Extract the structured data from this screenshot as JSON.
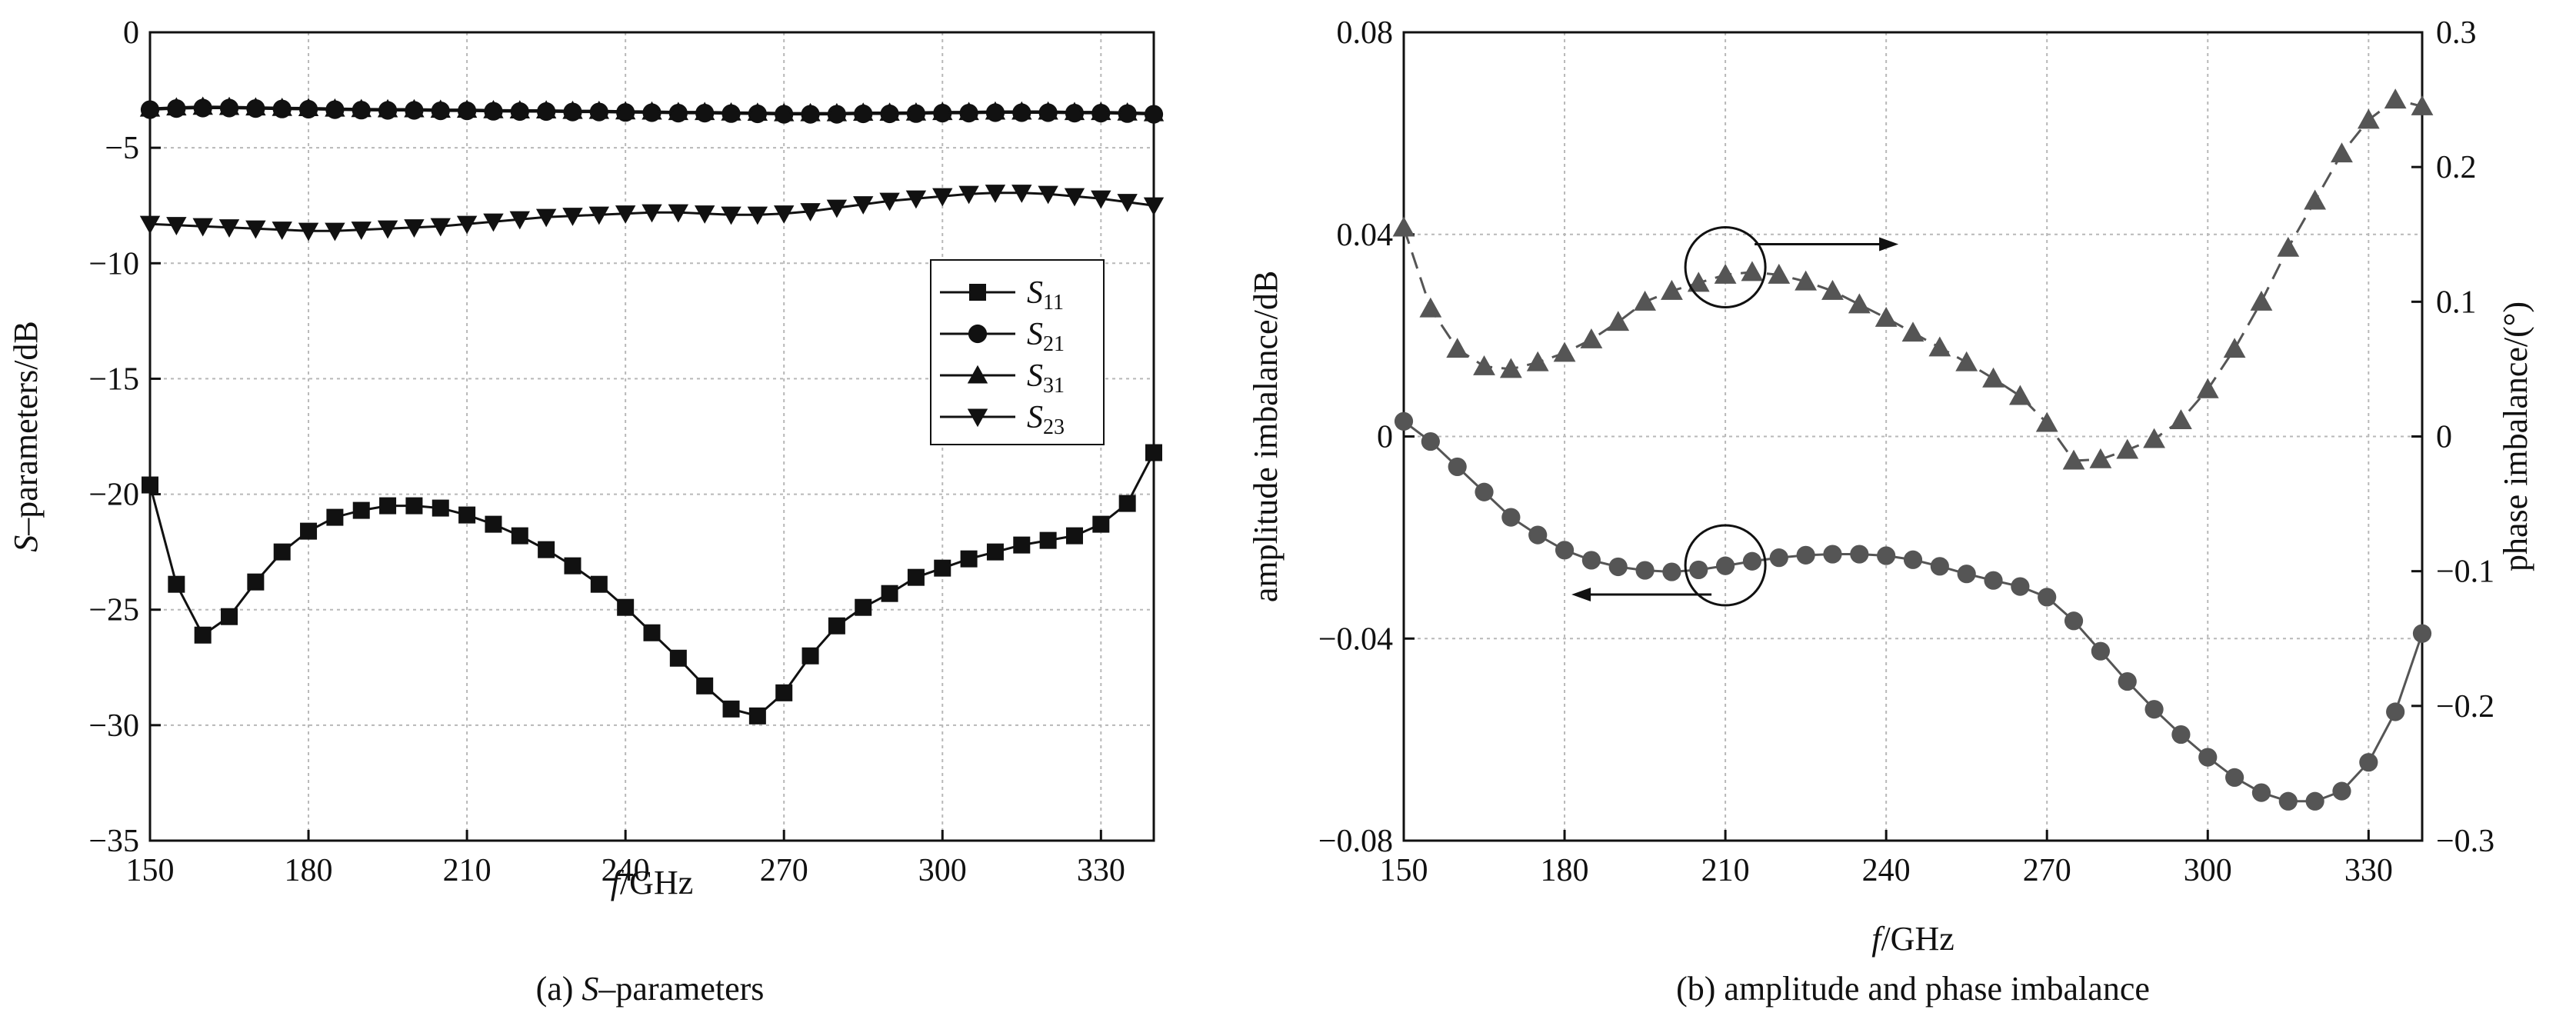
{
  "chart_data": [
    {
      "type": "line",
      "caption_prefix": "(a) ",
      "caption_italic": "S",
      "caption_rest": "–parameters",
      "xlabel_italic": "f",
      "xlabel_rest": "/GHz",
      "ylabel_italic": "S",
      "ylabel_rest": "–parameters/dB",
      "xlim": [
        150,
        340
      ],
      "ylim": [
        -35,
        0
      ],
      "xticks": [
        150,
        180,
        210,
        240,
        270,
        300,
        330
      ],
      "xtick_labels": [
        "150",
        "180",
        "210",
        "240",
        "270",
        "300",
        "330"
      ],
      "yticks": [
        0,
        -5,
        -10,
        -15,
        -20,
        -25,
        -30,
        -35
      ],
      "ytick_labels": [
        "0",
        "−5",
        "−10",
        "−15",
        "−20",
        "−25",
        "−30",
        "−35"
      ],
      "grid": true,
      "legend_position": "right-middle",
      "series": [
        {
          "name_main": "S",
          "name_sub": "11",
          "marker": "square",
          "color": "#111111",
          "x": [
            150,
            155,
            160,
            165,
            170,
            175,
            180,
            185,
            190,
            195,
            200,
            205,
            210,
            215,
            220,
            225,
            230,
            235,
            240,
            245,
            250,
            255,
            260,
            265,
            270,
            275,
            280,
            285,
            290,
            295,
            300,
            305,
            310,
            315,
            320,
            325,
            330,
            335,
            340
          ],
          "y": [
            -19.6,
            -23.9,
            -26.1,
            -25.3,
            -23.8,
            -22.5,
            -21.6,
            -21.0,
            -20.7,
            -20.5,
            -20.5,
            -20.6,
            -20.9,
            -21.3,
            -21.8,
            -22.4,
            -23.1,
            -23.9,
            -24.9,
            -26.0,
            -27.1,
            -28.3,
            -29.3,
            -29.6,
            -28.6,
            -27.0,
            -25.7,
            -24.9,
            -24.3,
            -23.6,
            -23.2,
            -22.8,
            -22.5,
            -22.2,
            -22.0,
            -21.8,
            -21.3,
            -20.4,
            -18.2
          ]
        },
        {
          "name_main": "S",
          "name_sub": "21",
          "marker": "circle",
          "color": "#111111",
          "x": [
            150,
            155,
            160,
            165,
            170,
            175,
            180,
            185,
            190,
            195,
            200,
            205,
            210,
            215,
            220,
            225,
            230,
            235,
            240,
            245,
            250,
            255,
            260,
            265,
            270,
            275,
            280,
            285,
            290,
            295,
            300,
            305,
            310,
            315,
            320,
            325,
            330,
            335,
            340
          ],
          "y": [
            -3.35,
            -3.3,
            -3.28,
            -3.28,
            -3.3,
            -3.32,
            -3.33,
            -3.35,
            -3.37,
            -3.38,
            -3.38,
            -3.4,
            -3.4,
            -3.42,
            -3.43,
            -3.43,
            -3.45,
            -3.45,
            -3.47,
            -3.48,
            -3.5,
            -3.5,
            -3.52,
            -3.53,
            -3.55,
            -3.55,
            -3.55,
            -3.53,
            -3.53,
            -3.52,
            -3.5,
            -3.5,
            -3.48,
            -3.48,
            -3.48,
            -3.5,
            -3.5,
            -3.52,
            -3.55
          ]
        },
        {
          "name_main": "S",
          "name_sub": "31",
          "marker": "triangle-up",
          "color": "#111111",
          "x": [
            150,
            155,
            160,
            165,
            170,
            175,
            180,
            185,
            190,
            195,
            200,
            205,
            210,
            215,
            220,
            225,
            230,
            235,
            240,
            245,
            250,
            255,
            260,
            265,
            270,
            275,
            280,
            285,
            290,
            295,
            300,
            305,
            310,
            315,
            320,
            325,
            330,
            335,
            340
          ],
          "y": [
            -3.3,
            -3.25,
            -3.22,
            -3.23,
            -3.25,
            -3.27,
            -3.28,
            -3.3,
            -3.32,
            -3.33,
            -3.33,
            -3.35,
            -3.35,
            -3.37,
            -3.38,
            -3.38,
            -3.4,
            -3.4,
            -3.42,
            -3.43,
            -3.45,
            -3.45,
            -3.47,
            -3.48,
            -3.5,
            -3.5,
            -3.5,
            -3.48,
            -3.48,
            -3.47,
            -3.45,
            -3.45,
            -3.43,
            -3.43,
            -3.43,
            -3.45,
            -3.45,
            -3.47,
            -3.5
          ]
        },
        {
          "name_main": "S",
          "name_sub": "23",
          "marker": "triangle-down",
          "color": "#111111",
          "x": [
            150,
            155,
            160,
            165,
            170,
            175,
            180,
            185,
            190,
            195,
            200,
            205,
            210,
            215,
            220,
            225,
            230,
            235,
            240,
            245,
            250,
            255,
            260,
            265,
            270,
            275,
            280,
            285,
            290,
            295,
            300,
            305,
            310,
            315,
            320,
            325,
            330,
            335,
            340
          ],
          "y": [
            -8.3,
            -8.35,
            -8.4,
            -8.45,
            -8.5,
            -8.55,
            -8.6,
            -8.6,
            -8.55,
            -8.5,
            -8.45,
            -8.4,
            -8.3,
            -8.2,
            -8.1,
            -8.0,
            -7.95,
            -7.9,
            -7.85,
            -7.8,
            -7.8,
            -7.85,
            -7.9,
            -7.9,
            -7.85,
            -7.75,
            -7.6,
            -7.45,
            -7.3,
            -7.2,
            -7.1,
            -7.0,
            -6.95,
            -6.95,
            -7.0,
            -7.1,
            -7.2,
            -7.35,
            -7.5
          ]
        }
      ]
    },
    {
      "type": "line",
      "caption": "(b) amplitude and phase imbalance",
      "xlabel_italic": "f",
      "xlabel_rest": "/GHz",
      "ylabel_left": "amplitude imbalance/dB",
      "ylabel_right": "phase imbalance/(°)",
      "xlim": [
        150,
        340
      ],
      "ylim_left": [
        -0.08,
        0.08
      ],
      "ylim_right": [
        -0.3,
        0.3
      ],
      "xticks": [
        150,
        180,
        210,
        240,
        270,
        300,
        330
      ],
      "xtick_labels": [
        "150",
        "180",
        "210",
        "240",
        "270",
        "300",
        "330"
      ],
      "yticks_left": [
        0.08,
        0.04,
        0,
        -0.04,
        -0.08
      ],
      "ytick_labels_left": [
        "0.08",
        "0.04",
        "0",
        "−0.04",
        "−0.08"
      ],
      "yticks_right": [
        0.3,
        0.2,
        0.1,
        0,
        -0.1,
        -0.2,
        -0.3
      ],
      "ytick_labels_right": [
        "0.3",
        "0.2",
        "0.1",
        "0",
        "−0.1",
        "−0.2",
        "−0.3"
      ],
      "grid": true,
      "annotations": [
        {
          "type": "circle-arrow",
          "x": 210,
          "y_left": 0.0335,
          "direction": "right",
          "axis": "right"
        },
        {
          "type": "circle-arrow",
          "x": 210,
          "y_left": -0.0255,
          "direction": "left",
          "axis": "left"
        }
      ],
      "series": [
        {
          "axis": "right",
          "marker": "triangle-up",
          "line": "dashed",
          "color": "#555555",
          "x": [
            150,
            155,
            160,
            165,
            170,
            175,
            180,
            185,
            190,
            195,
            200,
            205,
            210,
            215,
            220,
            225,
            230,
            235,
            240,
            245,
            250,
            255,
            260,
            265,
            270,
            275,
            280,
            285,
            290,
            295,
            300,
            305,
            310,
            315,
            320,
            325,
            330,
            335,
            340
          ],
          "y": [
            0.155,
            0.095,
            0.065,
            0.052,
            0.05,
            0.055,
            0.062,
            0.072,
            0.085,
            0.1,
            0.108,
            0.114,
            0.12,
            0.122,
            0.12,
            0.115,
            0.108,
            0.098,
            0.088,
            0.077,
            0.066,
            0.055,
            0.043,
            0.03,
            0.01,
            -0.018,
            -0.017,
            -0.01,
            -0.002,
            0.012,
            0.035,
            0.065,
            0.1,
            0.14,
            0.175,
            0.21,
            0.235,
            0.25,
            0.245
          ]
        },
        {
          "axis": "left",
          "marker": "circle",
          "line": "solid",
          "color": "#555555",
          "x": [
            150,
            155,
            160,
            165,
            170,
            175,
            180,
            185,
            190,
            195,
            200,
            205,
            210,
            215,
            220,
            225,
            230,
            235,
            240,
            245,
            250,
            255,
            260,
            265,
            270,
            275,
            280,
            285,
            290,
            295,
            300,
            305,
            310,
            315,
            320,
            325,
            330,
            335,
            340
          ],
          "y": [
            0.003,
            -0.001,
            -0.006,
            -0.011,
            -0.016,
            -0.0195,
            -0.0225,
            -0.0245,
            -0.0258,
            -0.0265,
            -0.0268,
            -0.0264,
            -0.0256,
            -0.0247,
            -0.024,
            -0.0235,
            -0.0233,
            -0.0233,
            -0.0236,
            -0.0244,
            -0.0257,
            -0.0272,
            -0.0285,
            -0.0297,
            -0.0318,
            -0.0365,
            -0.0425,
            -0.0485,
            -0.054,
            -0.059,
            -0.0635,
            -0.0675,
            -0.0705,
            -0.0722,
            -0.0722,
            -0.0702,
            -0.0645,
            -0.0545,
            -0.039
          ]
        }
      ]
    }
  ]
}
